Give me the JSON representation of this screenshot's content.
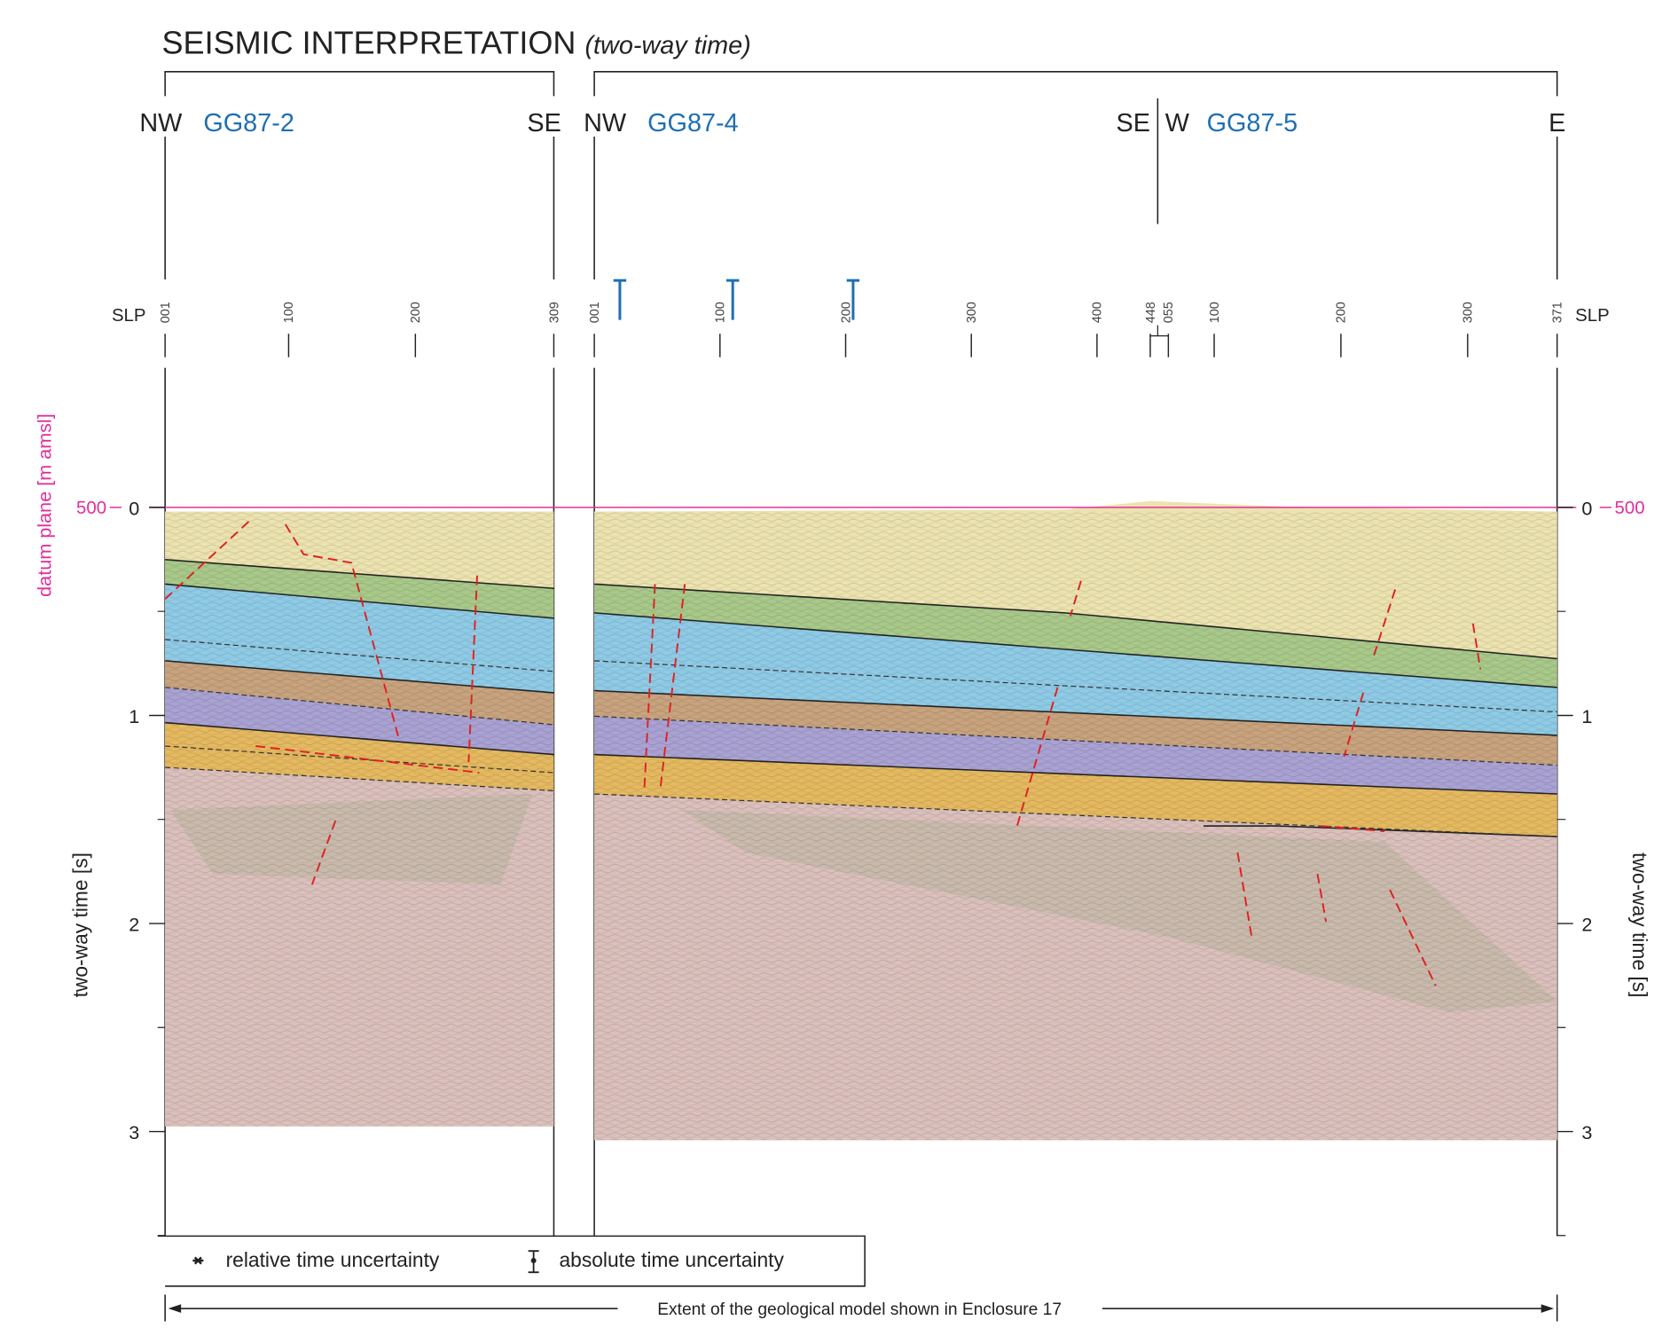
{
  "title": "SEISMIC INTERPRETATION",
  "subtitle": "(two-way time)",
  "profiles": [
    {
      "name": "GG87-2",
      "start": "NW",
      "end": "SE",
      "slp": [
        "001",
        "100",
        "200",
        "309"
      ]
    },
    {
      "name": "GG87-4",
      "start": "NW",
      "end": "SE",
      "slp": [
        "001",
        "100",
        "200",
        "300",
        "400",
        "448"
      ]
    },
    {
      "name": "GG87-5",
      "start": "W",
      "end": "E",
      "slp": [
        "055",
        "100",
        "200",
        "300",
        "371"
      ]
    }
  ],
  "slp_label": "SLP",
  "time_axis": {
    "label": "two-way time [s]",
    "ticks": [
      "0",
      "1",
      "2",
      "3"
    ]
  },
  "datum_axis": {
    "label": "datum plane [m amsl]",
    "value": "500"
  },
  "legend": [
    "relative time uncertainty",
    "absolute time uncertainty"
  ],
  "extent_note": "Extent of the geological model shown in Enclosure 17"
}
